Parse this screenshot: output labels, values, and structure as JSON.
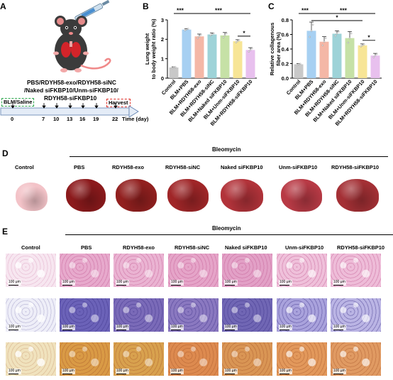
{
  "panel_a": {
    "letter": "A",
    "treatments": [
      "PBS/RDYH58-exo/RDYH58-siNC",
      "/Naked siFKBP10/Unm-siFKBP10/",
      "RDYH58-siFKBP10"
    ],
    "start_label": "BLM/Saline",
    "harvest_label": "Harvest",
    "axis_unit": "Time (day)",
    "days": [
      "0",
      "7",
      "10",
      "13",
      "16",
      "19",
      "22"
    ]
  },
  "panel_b": {
    "letter": "B"
  },
  "panel_c": {
    "letter": "C"
  },
  "chart_data": [
    {
      "type": "bar",
      "ylabel": "Lung weight to body weight ratio (%)",
      "ylim": [
        0,
        3
      ],
      "yticks": [
        "0",
        "1",
        "2",
        "3"
      ],
      "categories": [
        "Control",
        "BLM+PBS",
        "BLM+RDYH58-exo",
        "BLM+RDYH58-siNC",
        "BLM+Naked siFKBP10",
        "BLM+Unm-siFKBP10",
        "BLM+RDYH58-siFKBP10"
      ],
      "values": [
        0.55,
        2.5,
        2.15,
        2.25,
        2.2,
        1.9,
        1.45
      ],
      "errors": [
        0.03,
        0.05,
        0.12,
        0.08,
        0.15,
        0.08,
        0.12
      ],
      "colors": [
        "#c8c8c8",
        "#a7d0f2",
        "#f4b7a6",
        "#9ed3d8",
        "#c6e1a6",
        "#f7e596",
        "#e8c0ee"
      ],
      "significance": [
        {
          "from": 0,
          "to": 1,
          "label": "***"
        },
        {
          "from": 1,
          "to": 6,
          "label": "***"
        },
        {
          "from": 5,
          "to": 6,
          "label": "*"
        }
      ]
    },
    {
      "type": "bar",
      "ylabel": "Relative collagenous fiber area (%)",
      "ylim": [
        0,
        0.8
      ],
      "yticks": [
        "0.0",
        "0.2",
        "0.4",
        "0.6",
        "0.8"
      ],
      "categories": [
        "Control",
        "BLM+PBS",
        "BLM+RDYH58-exo",
        "BLM+RDYH58-siNC",
        "BLM+Naked siFKBP10",
        "BLM+Unm-siFKBP10",
        "BLM+RDYH58-siFKBP10"
      ],
      "values": [
        0.19,
        0.65,
        0.5,
        0.61,
        0.55,
        0.45,
        0.31
      ],
      "errors": [
        0.01,
        0.12,
        0.07,
        0.04,
        0.09,
        0.02,
        0.03
      ],
      "colors": [
        "#c8c8c8",
        "#a7d0f2",
        "#f4b7a6",
        "#9ed3d8",
        "#c6e1a6",
        "#f7e596",
        "#e8c0ee"
      ],
      "significance": [
        {
          "from": 0,
          "to": 1,
          "label": "***"
        },
        {
          "from": 1,
          "to": 6,
          "label": "***"
        },
        {
          "from": 1,
          "to": 5,
          "label": "*"
        },
        {
          "from": 5,
          "to": 6,
          "label": "*"
        }
      ]
    }
  ],
  "panel_d": {
    "letter": "D",
    "group_label": "Bleomycin",
    "columns": [
      "Control",
      "PBS",
      "RDYH58-exo",
      "RDYH58-siNC",
      "Naked siFKBP10",
      "Unm-siFKBP10",
      "RDYH58-siFKBP10"
    ],
    "lung_colors": [
      "#f3c3c8",
      "#8c1a1c",
      "#92201f",
      "#a02628",
      "#b2333a",
      "#b83a45",
      "#a43035"
    ]
  },
  "panel_e": {
    "letter": "E",
    "group_label": "Bleomycin",
    "columns": [
      "Control",
      "PBS",
      "RDYH58-exo",
      "RDYH58-siNC",
      "Naked siFKBP10",
      "Unm-siFKBP10",
      "RDYH58-siFKBP10"
    ],
    "scale_bar": "100 μm",
    "rows": [
      {
        "stain": "H&E",
        "colors": [
          "#f7e6f0",
          "#e7a9cc",
          "#eab3d2",
          "#e5a4c8",
          "#e2a0c6",
          "#efc0da",
          "#eebcd8"
        ],
        "accent": "#c0578f"
      },
      {
        "stain": "Masson",
        "colors": [
          "#eeeef8",
          "#6b62b8",
          "#7a6ab8",
          "#8a78c0",
          "#7066b4",
          "#a9a2dc",
          "#bab4e4"
        ],
        "accent": "#3a2f86"
      },
      {
        "stain": "Sirius",
        "colors": [
          "#f0e2bd",
          "#d99a45",
          "#d8a14e",
          "#dd8a4f",
          "#d99554",
          "#e2985b",
          "#e09a62"
        ],
        "accent": "#a8572a"
      }
    ]
  }
}
